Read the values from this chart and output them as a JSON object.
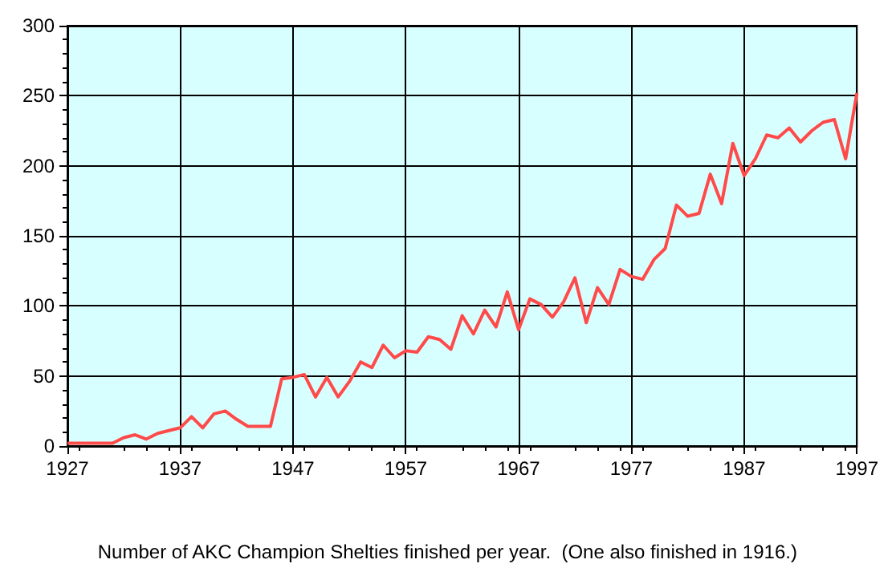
{
  "chart_data": {
    "type": "line",
    "annotations": [
      "Number of AKC Champion Shelties finished per year.  (One also finished in 1916.)"
    ],
    "x": [
      1927,
      1928,
      1929,
      1930,
      1931,
      1932,
      1933,
      1934,
      1935,
      1936,
      1937,
      1938,
      1939,
      1940,
      1941,
      1942,
      1943,
      1944,
      1945,
      1946,
      1947,
      1948,
      1949,
      1950,
      1951,
      1952,
      1953,
      1954,
      1955,
      1956,
      1957,
      1958,
      1959,
      1960,
      1961,
      1962,
      1963,
      1964,
      1965,
      1966,
      1967,
      1968,
      1969,
      1970,
      1971,
      1972,
      1973,
      1974,
      1975,
      1976,
      1977,
      1978,
      1979,
      1980,
      1981,
      1982,
      1983,
      1984,
      1985,
      1986,
      1987,
      1988,
      1989,
      1990,
      1991,
      1992,
      1993,
      1994,
      1995,
      1996,
      1997
    ],
    "series": [
      {
        "color": "#ff4a4a",
        "values": [
          2,
          2,
          2,
          2,
          2,
          6,
          8,
          5,
          9,
          11,
          13,
          21,
          13,
          23,
          25,
          19,
          14,
          14,
          14,
          48,
          49,
          51,
          35,
          49,
          35,
          46,
          60,
          56,
          72,
          63,
          68,
          67,
          78,
          76,
          69,
          93,
          80,
          97,
          85,
          110,
          83,
          105,
          101,
          92,
          103,
          120,
          88,
          113,
          101,
          126,
          121,
          119,
          133,
          141,
          172,
          164,
          166,
          194,
          173,
          216,
          193,
          205,
          222,
          220,
          227,
          217,
          225,
          231,
          233,
          205,
          252
        ]
      }
    ],
    "xlim": [
      1927,
      1997
    ],
    "xticks": [
      1927,
      1937,
      1947,
      1957,
      1967,
      1977,
      1987,
      1997
    ],
    "ylim": [
      0,
      300
    ],
    "yticks": [
      0,
      50,
      100,
      150,
      200,
      250,
      300
    ],
    "grid": true,
    "marker": "none",
    "line_style": "solid"
  }
}
